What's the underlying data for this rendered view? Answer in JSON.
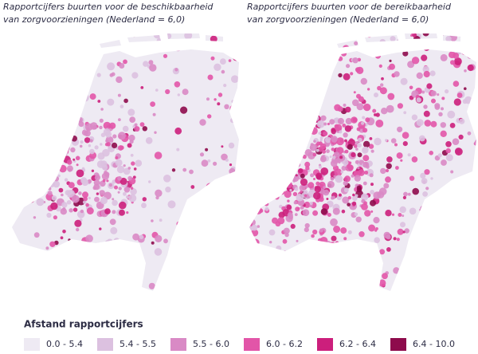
{
  "maps": [
    {
      "title_line1": "Rapportcijfers buurten voor de beschikbaarheid",
      "title_line2": "van zorgvoorzieningen (Nederland = 6,0)"
    },
    {
      "title_line1": "Rapportcijfers buurten voor de bereikbaarheid",
      "title_line2": "van zorgvoorzieningen (Nederland = 6,0)"
    }
  ],
  "legend": {
    "title": "Afstand rapportcijfers",
    "items": [
      {
        "label": "0.0 - 5.4",
        "color": "#eeeaf3"
      },
      {
        "label": "5.4 - 5.5",
        "color": "#dcc1e0"
      },
      {
        "label": "5.5 - 6.0",
        "color": "#d98ac5"
      },
      {
        "label": "6.0 - 6.2",
        "color": "#e255a8"
      },
      {
        "label": "6.2 - 6.4",
        "color": "#cc1f7c"
      },
      {
        "label": "6.4 - 10.0",
        "color": "#8e0b4c"
      }
    ]
  }
}
